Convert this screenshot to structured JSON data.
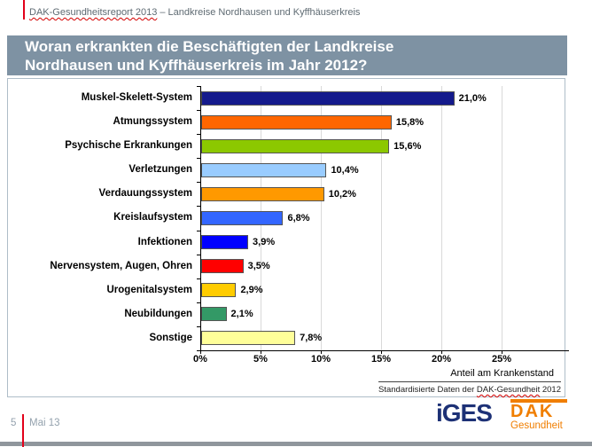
{
  "header": {
    "report_name": "DAK-Gesundheitsreport 2013",
    "report_rest": " – Landkreise Nordhausen und Kyffhäuserkreis"
  },
  "title": {
    "line1": "Woran erkrankten die Beschäftigten der Landkreise",
    "line2": "Nordhausen und Kyffhäuserkreis im Jahr 2012?"
  },
  "chart_data": {
    "type": "bar",
    "orientation": "horizontal",
    "categories": [
      "Muskel-Skelett-System",
      "Atmungssystem",
      "Psychische Erkrankungen",
      "Verletzungen",
      "Verdauungssystem",
      "Kreislaufsystem",
      "Infektionen",
      "Nervensystem, Augen, Ohren",
      "Urogenitalsystem",
      "Neubildungen",
      "Sonstige"
    ],
    "values": [
      21.0,
      15.8,
      15.6,
      10.4,
      10.2,
      6.8,
      3.9,
      3.5,
      2.9,
      2.1,
      7.8
    ],
    "value_labels": [
      "21,0%",
      "15,8%",
      "15,6%",
      "10,4%",
      "10,2%",
      "6,8%",
      "3,9%",
      "3,5%",
      "2,9%",
      "2,1%",
      "7,8%"
    ],
    "bar_colors": [
      "#141a8c",
      "#ff6600",
      "#8cc800",
      "#99ccff",
      "#ff9900",
      "#3366ff",
      "#0000ff",
      "#ff0000",
      "#ffcc00",
      "#339966",
      "#ffff99"
    ],
    "x_ticks": [
      "0%",
      "5%",
      "10%",
      "15%",
      "20%",
      "25%"
    ],
    "xlim": [
      0,
      25
    ],
    "xlabel": "Anteil am Krankenstand",
    "grid": "vertical gridlines every 5%, light gray",
    "legend": "none",
    "source_prefix": "Standardisierte Daten der ",
    "source_emph": "DAK-Gesundheit",
    "source_suffix": " 2012"
  },
  "footer": {
    "page_number": "5",
    "date": "Mai 13"
  },
  "logos": {
    "iges": "iGES",
    "dak": "DAK",
    "dak_sub": "Gesundheit"
  },
  "colors": {
    "title_bar": "#7e92a3",
    "accent_red": "#e2001a",
    "iges_blue": "#1d3176",
    "dak_orange": "#f07e00",
    "gridline": "#d9d9d9"
  }
}
